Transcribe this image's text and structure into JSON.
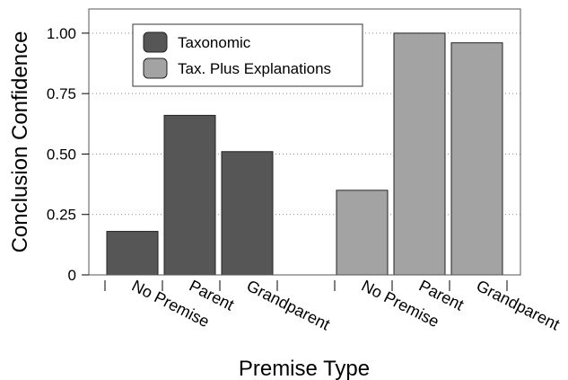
{
  "chart_data": {
    "type": "bar",
    "xlabel": "Premise Type",
    "ylabel": "Conclusion Confidence",
    "ylim": [
      0,
      1.1
    ],
    "yticks": [
      0,
      0.25,
      0.5,
      0.75,
      1.0
    ],
    "ytick_labels": [
      "0",
      "0.25",
      "0.50",
      "0.75",
      "1.00"
    ],
    "grid": "horizontal-dotted",
    "legend_position": "top-left",
    "categories": [
      "No Premise",
      "Parent",
      "Grandparent"
    ],
    "series": [
      {
        "name": "Taxonomic",
        "color": "#565656",
        "values": [
          0.18,
          0.66,
          0.51
        ]
      },
      {
        "name": "Tax. Plus Explanations",
        "color": "#a3a3a3",
        "values": [
          0.35,
          1.0,
          0.96
        ]
      }
    ]
  }
}
